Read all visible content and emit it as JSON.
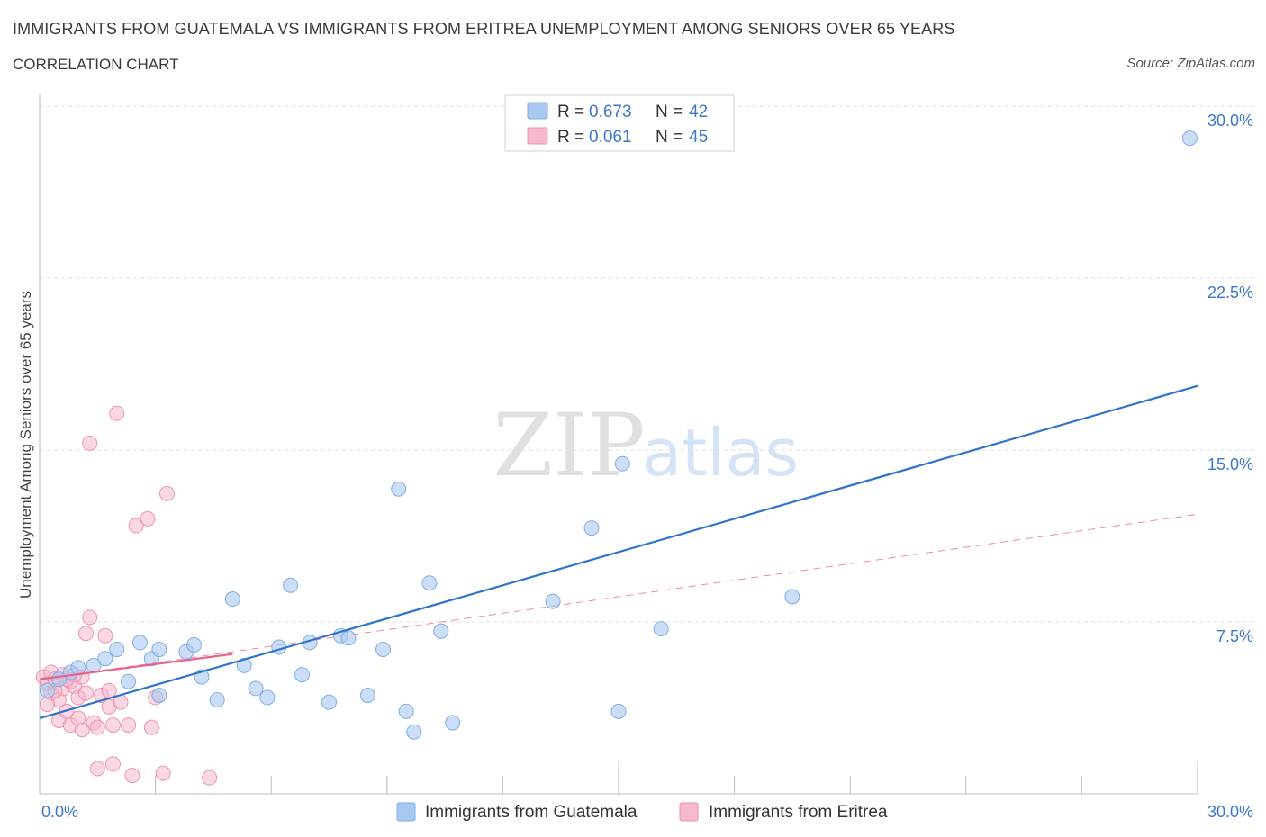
{
  "title": "IMMIGRANTS FROM GUATEMALA VS IMMIGRANTS FROM ERITREA UNEMPLOYMENT AMONG SENIORS OVER 65 YEARS",
  "subtitle": "CORRELATION CHART",
  "source": "Source: ZipAtlas.com",
  "watermark": {
    "zip": "ZIP",
    "atlas": "atlas"
  },
  "colors": {
    "guatemala_fill": "#a9c8f0",
    "guatemala_stroke": "#7eaee6",
    "guatemala_line": "#2f74c8",
    "eritrea_fill": "#f6b8cc",
    "eritrea_stroke": "#ee93b1",
    "eritrea_line": "#e8628e",
    "value_text": "#3a78c9",
    "grid": "#dcdcdc"
  },
  "legend_top": [
    {
      "r_label": "R = ",
      "r_value": "0.673",
      "n_label": "N = ",
      "n_value": "42"
    },
    {
      "r_label": "R = ",
      "r_value": "0.061",
      "n_label": "N = ",
      "n_value": "45"
    }
  ],
  "chart_data": {
    "type": "scatter",
    "title": "IMMIGRANTS FROM GUATEMALA VS IMMIGRANTS FROM ERITREA UNEMPLOYMENT AMONG SENIORS OVER 65 YEARS",
    "xlabel": "",
    "ylabel": "Unemployment Among Seniors over 65 years",
    "xlim": [
      0,
      30
    ],
    "ylim": [
      0,
      30
    ],
    "x_tick_labels": [
      "0.0%",
      "30.0%"
    ],
    "y_ticks": [
      7.5,
      15.0,
      22.5,
      30.0
    ],
    "y_tick_labels": [
      "7.5%",
      "15.0%",
      "22.5%",
      "30.0%"
    ],
    "grid": true,
    "legend": [
      "Immigrants from Guatemala",
      "Immigrants from Eritrea"
    ],
    "series": [
      {
        "name": "Immigrants from Guatemala",
        "points": [
          [
            0.2,
            4.5
          ],
          [
            0.5,
            5.0
          ],
          [
            0.8,
            5.3
          ],
          [
            1.0,
            5.5
          ],
          [
            1.4,
            5.6
          ],
          [
            1.7,
            5.9
          ],
          [
            2.0,
            6.3
          ],
          [
            2.3,
            4.9
          ],
          [
            2.6,
            6.6
          ],
          [
            2.9,
            5.9
          ],
          [
            3.1,
            4.3
          ],
          [
            3.1,
            6.3
          ],
          [
            3.8,
            6.2
          ],
          [
            4.0,
            6.5
          ],
          [
            4.2,
            5.1
          ],
          [
            4.6,
            4.1
          ],
          [
            5.0,
            8.5
          ],
          [
            5.3,
            5.6
          ],
          [
            5.6,
            4.6
          ],
          [
            5.9,
            4.2
          ],
          [
            6.2,
            6.4
          ],
          [
            6.5,
            9.1
          ],
          [
            6.8,
            5.2
          ],
          [
            7.0,
            6.6
          ],
          [
            7.5,
            4.0
          ],
          [
            7.8,
            6.9
          ],
          [
            8.0,
            6.8
          ],
          [
            8.5,
            4.3
          ],
          [
            8.9,
            6.3
          ],
          [
            9.3,
            13.3
          ],
          [
            9.5,
            3.6
          ],
          [
            9.7,
            2.7
          ],
          [
            10.1,
            9.2
          ],
          [
            10.4,
            7.1
          ],
          [
            10.7,
            3.1
          ],
          [
            13.3,
            8.4
          ],
          [
            14.3,
            11.6
          ],
          [
            15.0,
            3.6
          ],
          [
            15.1,
            14.4
          ],
          [
            16.1,
            7.2
          ],
          [
            19.5,
            8.6
          ],
          [
            29.8,
            28.6
          ]
        ],
        "trend": {
          "x": [
            0,
            30
          ],
          "y": [
            3.3,
            17.8
          ]
        }
      },
      {
        "name": "Immigrants from Eritrea",
        "points": [
          [
            0.1,
            5.1
          ],
          [
            0.2,
            4.8
          ],
          [
            0.3,
            5.3
          ],
          [
            0.3,
            4.4
          ],
          [
            0.4,
            5.0
          ],
          [
            0.5,
            4.1
          ],
          [
            0.5,
            3.2
          ],
          [
            0.6,
            5.2
          ],
          [
            0.6,
            4.6
          ],
          [
            0.7,
            3.6
          ],
          [
            0.8,
            3.0
          ],
          [
            0.8,
            4.9
          ],
          [
            0.9,
            4.7
          ],
          [
            1.0,
            4.2
          ],
          [
            1.1,
            5.1
          ],
          [
            1.1,
            2.8
          ],
          [
            1.2,
            7.0
          ],
          [
            1.3,
            15.3
          ],
          [
            1.3,
            7.7
          ],
          [
            1.4,
            3.1
          ],
          [
            1.5,
            1.1
          ],
          [
            1.5,
            2.9
          ],
          [
            1.6,
            4.3
          ],
          [
            1.7,
            6.9
          ],
          [
            1.8,
            3.8
          ],
          [
            1.8,
            4.5
          ],
          [
            1.9,
            3.0
          ],
          [
            1.9,
            1.3
          ],
          [
            2.0,
            16.6
          ],
          [
            2.1,
            4.0
          ],
          [
            2.3,
            3.0
          ],
          [
            2.4,
            0.8
          ],
          [
            2.5,
            11.7
          ],
          [
            2.8,
            12.0
          ],
          [
            2.9,
            2.9
          ],
          [
            3.0,
            4.2
          ],
          [
            3.2,
            0.9
          ],
          [
            3.3,
            13.1
          ],
          [
            4.4,
            0.7
          ],
          [
            0.4,
            4.5
          ],
          [
            0.7,
            5.0
          ],
          [
            1.0,
            3.3
          ],
          [
            1.2,
            4.4
          ],
          [
            0.9,
            5.2
          ],
          [
            0.2,
            3.9
          ]
        ],
        "trend_solid": {
          "x": [
            0,
            5.0
          ],
          "y": [
            5.0,
            6.1
          ]
        },
        "trend_dashed": {
          "x": [
            0,
            30
          ],
          "y": [
            5.0,
            12.2
          ]
        }
      }
    ]
  },
  "legend_bottom": [
    "Immigrants from Guatemala",
    "Immigrants from Eritrea"
  ]
}
